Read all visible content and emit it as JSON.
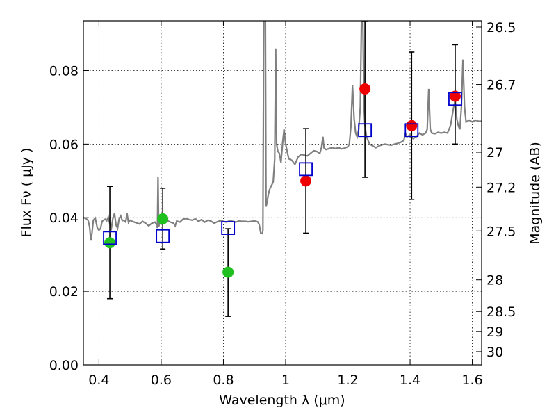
{
  "chart_data": {
    "type": "scatter",
    "xlabel": "Wavelength  λ (μm)",
    "ylabel_left": "Flux  Fν  ( μJy )",
    "ylabel_right": "Magnitude (AB)",
    "xlim": [
      0.35,
      1.63
    ],
    "ylim": [
      0.0,
      0.0935
    ],
    "grid": true,
    "x_ticks": [
      {
        "value": 0.4,
        "label": "0.4"
      },
      {
        "value": 0.6,
        "label": "0.6"
      },
      {
        "value": 0.8,
        "label": "0.8"
      },
      {
        "value": 1.0,
        "label": "1"
      },
      {
        "value": 1.2,
        "label": "1.2"
      },
      {
        "value": 1.4,
        "label": "1.4"
      },
      {
        "value": 1.6,
        "label": "1.6"
      }
    ],
    "y_ticks": [
      {
        "value": 0.0,
        "label": "0.00"
      },
      {
        "value": 0.02,
        "label": "0.02"
      },
      {
        "value": 0.04,
        "label": "0.04"
      },
      {
        "value": 0.06,
        "label": "0.06"
      },
      {
        "value": 0.08,
        "label": "0.08"
      }
    ],
    "right_ticks": [
      {
        "flux": 0.0918,
        "label": "26.5"
      },
      {
        "flux": 0.0762,
        "label": "26.7"
      },
      {
        "flux": 0.0578,
        "label": "27"
      },
      {
        "flux": 0.0483,
        "label": "27.2"
      },
      {
        "flux": 0.0364,
        "label": "27.5"
      },
      {
        "flux": 0.0231,
        "label": "28"
      },
      {
        "flux": 0.0145,
        "label": "28.5"
      },
      {
        "flux": 0.0091,
        "label": "29"
      },
      {
        "flux": 0.0036,
        "label": "30"
      }
    ],
    "colors": {
      "spectrum": "#808080",
      "model_marker": "#0000cc",
      "optical_points": "#1fc01f",
      "nir_points": "#ee0000",
      "errorbar": "#000000"
    },
    "spectrum": [
      [
        0.35,
        0.04
      ],
      [
        0.358,
        0.0398
      ],
      [
        0.365,
        0.0393
      ],
      [
        0.37,
        0.0375
      ],
      [
        0.374,
        0.0338
      ],
      [
        0.378,
        0.036
      ],
      [
        0.382,
        0.0393
      ],
      [
        0.388,
        0.0399
      ],
      [
        0.395,
        0.0372
      ],
      [
        0.4,
        0.0366
      ],
      [
        0.405,
        0.037
      ],
      [
        0.41,
        0.039
      ],
      [
        0.415,
        0.0393
      ],
      [
        0.42,
        0.0396
      ],
      [
        0.425,
        0.0392
      ],
      [
        0.43,
        0.0402
      ],
      [
        0.435,
        0.0383
      ],
      [
        0.44,
        0.0372
      ],
      [
        0.445,
        0.0399
      ],
      [
        0.45,
        0.0412
      ],
      [
        0.455,
        0.038
      ],
      [
        0.46,
        0.0371
      ],
      [
        0.465,
        0.0398
      ],
      [
        0.47,
        0.0405
      ],
      [
        0.475,
        0.0392
      ],
      [
        0.48,
        0.0393
      ],
      [
        0.486,
        0.0388
      ],
      [
        0.49,
        0.0412
      ],
      [
        0.495,
        0.0387
      ],
      [
        0.5,
        0.0393
      ],
      [
        0.51,
        0.0389
      ],
      [
        0.52,
        0.0386
      ],
      [
        0.53,
        0.0383
      ],
      [
        0.54,
        0.039
      ],
      [
        0.55,
        0.0385
      ],
      [
        0.56,
        0.0378
      ],
      [
        0.57,
        0.0385
      ],
      [
        0.58,
        0.0388
      ],
      [
        0.585,
        0.0382
      ],
      [
        0.588,
        0.0372
      ],
      [
        0.59,
        0.051
      ],
      [
        0.592,
        0.0375
      ],
      [
        0.595,
        0.0386
      ],
      [
        0.6,
        0.0389
      ],
      [
        0.61,
        0.0387
      ],
      [
        0.62,
        0.0392
      ],
      [
        0.63,
        0.0388
      ],
      [
        0.64,
        0.0385
      ],
      [
        0.645,
        0.0378
      ],
      [
        0.65,
        0.0391
      ],
      [
        0.66,
        0.0388
      ],
      [
        0.67,
        0.0396
      ],
      [
        0.68,
        0.0398
      ],
      [
        0.69,
        0.0395
      ],
      [
        0.7,
        0.0393
      ],
      [
        0.71,
        0.0397
      ],
      [
        0.72,
        0.039
      ],
      [
        0.73,
        0.0395
      ],
      [
        0.74,
        0.0388
      ],
      [
        0.75,
        0.0393
      ],
      [
        0.76,
        0.0391
      ],
      [
        0.77,
        0.0385
      ],
      [
        0.78,
        0.0389
      ],
      [
        0.79,
        0.0392
      ],
      [
        0.8,
        0.039
      ],
      [
        0.81,
        0.0388
      ],
      [
        0.82,
        0.0392
      ],
      [
        0.83,
        0.039
      ],
      [
        0.84,
        0.0388
      ],
      [
        0.85,
        0.0391
      ],
      [
        0.86,
        0.039
      ],
      [
        0.87,
        0.039
      ],
      [
        0.88,
        0.0389
      ],
      [
        0.89,
        0.039
      ],
      [
        0.9,
        0.0391
      ],
      [
        0.91,
        0.0389
      ],
      [
        0.915,
        0.0382
      ],
      [
        0.92,
        0.0358
      ],
      [
        0.925,
        0.0357
      ],
      [
        0.927,
        0.0365
      ],
      [
        0.93,
        0.094
      ],
      [
        0.933,
        0.095
      ],
      [
        0.935,
        0.095
      ],
      [
        0.937,
        0.043
      ],
      [
        0.94,
        0.044
      ],
      [
        0.945,
        0.0466
      ],
      [
        0.95,
        0.048
      ],
      [
        0.955,
        0.0488
      ],
      [
        0.96,
        0.0497
      ],
      [
        0.965,
        0.056
      ],
      [
        0.968,
        0.086
      ],
      [
        0.971,
        0.06
      ],
      [
        0.975,
        0.058
      ],
      [
        0.98,
        0.0575
      ],
      [
        0.985,
        0.055
      ],
      [
        0.99,
        0.06
      ],
      [
        0.995,
        0.064
      ],
      [
        1.0,
        0.06
      ],
      [
        1.005,
        0.058
      ],
      [
        1.01,
        0.056
      ],
      [
        1.02,
        0.0556
      ],
      [
        1.03,
        0.0545
      ],
      [
        1.04,
        0.0565
      ],
      [
        1.05,
        0.0572
      ],
      [
        1.06,
        0.057
      ],
      [
        1.07,
        0.0568
      ],
      [
        1.08,
        0.0575
      ],
      [
        1.09,
        0.0582
      ],
      [
        1.1,
        0.058
      ],
      [
        1.11,
        0.0575
      ],
      [
        1.115,
        0.059
      ],
      [
        1.12,
        0.062
      ],
      [
        1.123,
        0.059
      ],
      [
        1.13,
        0.0585
      ],
      [
        1.14,
        0.0588
      ],
      [
        1.15,
        0.059
      ],
      [
        1.16,
        0.0588
      ],
      [
        1.17,
        0.059
      ],
      [
        1.18,
        0.0587
      ],
      [
        1.19,
        0.0589
      ],
      [
        1.2,
        0.0593
      ],
      [
        1.205,
        0.06
      ],
      [
        1.21,
        0.065
      ],
      [
        1.215,
        0.076
      ],
      [
        1.22,
        0.067
      ],
      [
        1.225,
        0.063
      ],
      [
        1.23,
        0.062
      ],
      [
        1.235,
        0.064
      ],
      [
        1.24,
        0.07
      ],
      [
        1.244,
        0.095
      ],
      [
        1.248,
        0.095
      ],
      [
        1.252,
        0.07
      ],
      [
        1.255,
        0.065
      ],
      [
        1.26,
        0.062
      ],
      [
        1.27,
        0.06
      ],
      [
        1.28,
        0.0595
      ],
      [
        1.29,
        0.059
      ],
      [
        1.3,
        0.0595
      ],
      [
        1.31,
        0.0598
      ],
      [
        1.32,
        0.06
      ],
      [
        1.33,
        0.0598
      ],
      [
        1.34,
        0.0597
      ],
      [
        1.35,
        0.06
      ],
      [
        1.36,
        0.0602
      ],
      [
        1.37,
        0.0605
      ],
      [
        1.38,
        0.061
      ],
      [
        1.385,
        0.063
      ],
      [
        1.39,
        0.062
      ],
      [
        1.4,
        0.0625
      ],
      [
        1.41,
        0.0615
      ],
      [
        1.42,
        0.062
      ],
      [
        1.43,
        0.063
      ],
      [
        1.44,
        0.0625
      ],
      [
        1.45,
        0.063
      ],
      [
        1.455,
        0.064
      ],
      [
        1.46,
        0.075
      ],
      [
        1.465,
        0.064
      ],
      [
        1.47,
        0.063
      ],
      [
        1.48,
        0.0628
      ],
      [
        1.49,
        0.0632
      ],
      [
        1.5,
        0.063
      ],
      [
        1.51,
        0.0632
      ],
      [
        1.52,
        0.063
      ],
      [
        1.53,
        0.065
      ],
      [
        1.54,
        0.07
      ],
      [
        1.545,
        0.072
      ],
      [
        1.55,
        0.067
      ],
      [
        1.555,
        0.065
      ],
      [
        1.56,
        0.064
      ],
      [
        1.565,
        0.07
      ],
      [
        1.57,
        0.083
      ],
      [
        1.575,
        0.07
      ],
      [
        1.58,
        0.066
      ],
      [
        1.59,
        0.0665
      ],
      [
        1.6,
        0.066
      ],
      [
        1.61,
        0.0665
      ],
      [
        1.62,
        0.0662
      ],
      [
        1.63,
        0.0662
      ]
    ],
    "model_points": [
      {
        "x": 0.435,
        "y": 0.0345
      },
      {
        "x": 0.605,
        "y": 0.035
      },
      {
        "x": 0.815,
        "y": 0.0372
      },
      {
        "x": 1.065,
        "y": 0.0532
      },
      {
        "x": 1.255,
        "y": 0.0638
      },
      {
        "x": 1.405,
        "y": 0.0638
      },
      {
        "x": 1.545,
        "y": 0.0723
      }
    ],
    "observed_points": [
      {
        "x": 0.435,
        "y": 0.0332,
        "err_low": 0.018,
        "err_high": 0.0485,
        "band": "optical"
      },
      {
        "x": 0.605,
        "y": 0.0397,
        "err_low": 0.0315,
        "err_high": 0.048,
        "band": "optical"
      },
      {
        "x": 0.815,
        "y": 0.0252,
        "err_low": 0.0132,
        "err_high": 0.037,
        "band": "optical"
      },
      {
        "x": 1.065,
        "y": 0.05,
        "err_low": 0.0358,
        "err_high": 0.0642,
        "band": "nir"
      },
      {
        "x": 1.255,
        "y": 0.075,
        "err_low": 0.051,
        "err_high": 0.0935,
        "band": "nir"
      },
      {
        "x": 1.405,
        "y": 0.065,
        "err_low": 0.045,
        "err_high": 0.085,
        "band": "nir"
      },
      {
        "x": 1.545,
        "y": 0.073,
        "err_low": 0.06,
        "err_high": 0.087,
        "band": "nir"
      }
    ]
  }
}
